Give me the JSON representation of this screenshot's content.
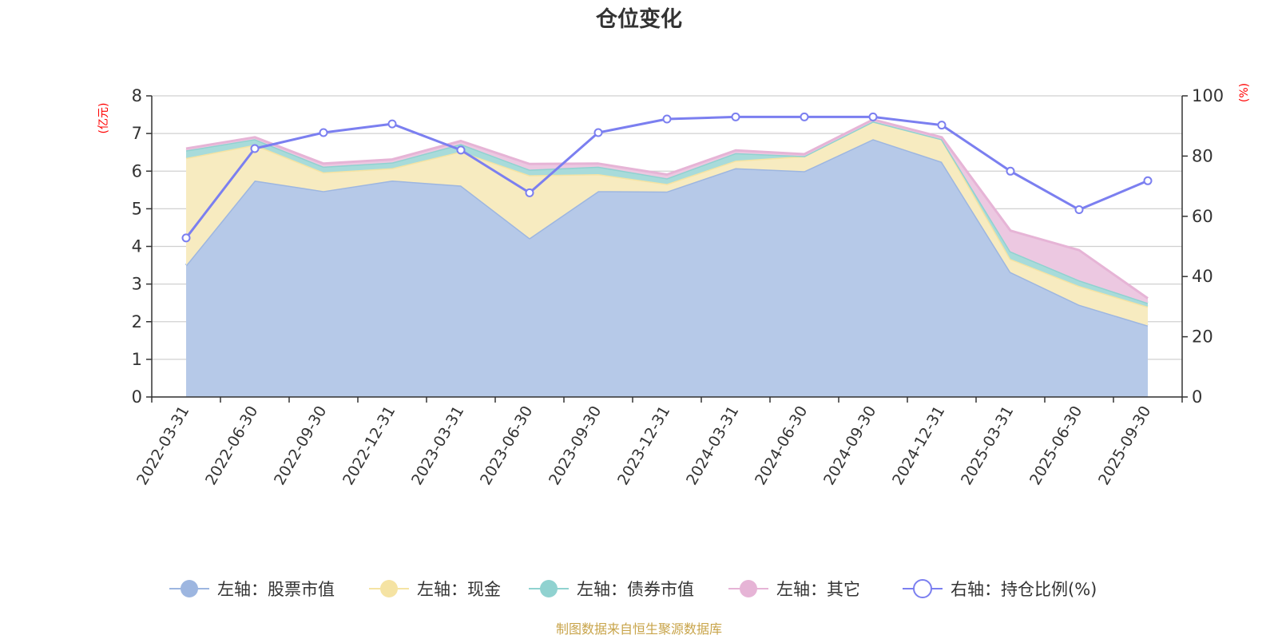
{
  "chart_data": {
    "type": "area",
    "title": "仓位变化",
    "categories": [
      "2022-03-31",
      "2022-06-30",
      "2022-09-30",
      "2022-12-31",
      "2023-03-31",
      "2023-06-30",
      "2023-09-30",
      "2023-12-31",
      "2024-03-31",
      "2024-06-30",
      "2024-09-30",
      "2024-12-31",
      "2025-03-31",
      "2025-06-30",
      "2025-09-30"
    ],
    "left_axis": {
      "unit": "(亿元)",
      "ylim": [
        0,
        8
      ],
      "ticks": [
        "0",
        "1",
        "2",
        "3",
        "4",
        "5",
        "6",
        "7",
        "8"
      ]
    },
    "right_axis": {
      "unit": "(%)",
      "ylim": [
        0,
        100
      ],
      "ticks": [
        "0",
        "20",
        "40",
        "60",
        "80",
        "100"
      ]
    },
    "stacked": true,
    "grid": true,
    "legend_position": "bottom",
    "series": [
      {
        "name": "左轴：股票市值",
        "axis": "left",
        "color": "#9db6e0",
        "fill": "#b6c9e8",
        "values": [
          3.5,
          5.75,
          5.47,
          5.75,
          5.62,
          4.22,
          5.47,
          5.46,
          6.08,
          6.0,
          6.85,
          6.25,
          3.32,
          2.45,
          1.9
        ]
      },
      {
        "name": "左轴：现金",
        "axis": "left",
        "color": "#f5e3a3",
        "fill": "#f7ebc0",
        "values": [
          2.85,
          0.95,
          0.5,
          0.33,
          0.9,
          1.67,
          0.45,
          0.2,
          0.2,
          0.4,
          0.47,
          0.6,
          0.35,
          0.5,
          0.5
        ]
      },
      {
        "name": "左轴：债券市值",
        "axis": "left",
        "color": "#90d2d0",
        "fill": "#a8dbda",
        "values": [
          0.2,
          0.15,
          0.15,
          0.15,
          0.2,
          0.15,
          0.2,
          0.15,
          0.2,
          0.0,
          0.0,
          0.0,
          0.2,
          0.15,
          0.1
        ]
      },
      {
        "name": "左轴：其它",
        "axis": "left",
        "color": "#e6b4d6",
        "fill": "#ecc8e1",
        "values": [
          0.05,
          0.05,
          0.08,
          0.08,
          0.08,
          0.15,
          0.08,
          0.1,
          0.07,
          0.05,
          0.05,
          0.05,
          0.55,
          0.8,
          0.12
        ]
      },
      {
        "name": "右轴：持仓比例(%)",
        "axis": "right",
        "color": "#7b7ff0",
        "values": [
          52.8,
          82.5,
          87.8,
          90.7,
          82.0,
          67.8,
          87.8,
          92.3,
          93.0,
          93.0,
          93.0,
          90.3,
          75.0,
          62.2,
          71.8
        ]
      }
    ],
    "source": "制图数据来自恒生聚源数据库"
  }
}
